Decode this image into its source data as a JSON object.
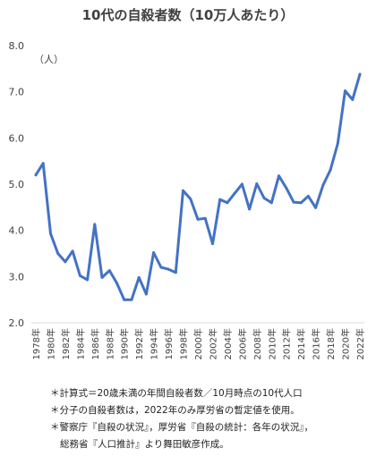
{
  "chart_data": {
    "type": "line",
    "title": "10代の自殺者数（10万人あたり）",
    "unit_label": "（人）",
    "ylim": [
      2.0,
      8.0
    ],
    "y_ticks": [
      "2.0",
      "3.0",
      "4.0",
      "5.0",
      "6.0",
      "7.0",
      "8.0"
    ],
    "x_labels": [
      "1978年",
      "1980年",
      "1982年",
      "1984年",
      "1986年",
      "1988年",
      "1990年",
      "1992年",
      "1994年",
      "1996年",
      "1998年",
      "2000年",
      "2002年",
      "2004年",
      "2006年",
      "2008年",
      "2010年",
      "2012年",
      "2014年",
      "2016年",
      "2018年",
      "2020年",
      "2022年"
    ],
    "grid": false,
    "legend": "none",
    "line_color": "#4472C4",
    "x": [
      1978,
      1979,
      1980,
      1981,
      1982,
      1983,
      1984,
      1985,
      1986,
      1987,
      1988,
      1989,
      1990,
      1991,
      1992,
      1993,
      1994,
      1995,
      1996,
      1997,
      1998,
      1999,
      2000,
      2001,
      2002,
      2003,
      2004,
      2005,
      2006,
      2007,
      2008,
      2009,
      2010,
      2011,
      2012,
      2013,
      2014,
      2015,
      2016,
      2017,
      2018,
      2019,
      2020,
      2021,
      2022
    ],
    "values": [
      5.2,
      5.45,
      3.93,
      3.5,
      3.32,
      3.55,
      3.02,
      2.93,
      4.13,
      2.98,
      3.13,
      2.86,
      2.5,
      2.5,
      2.98,
      2.62,
      3.52,
      3.2,
      3.16,
      3.09,
      4.86,
      4.68,
      4.24,
      4.26,
      3.71,
      4.67,
      4.6,
      4.8,
      5.0,
      4.46,
      5.01,
      4.7,
      4.6,
      5.18,
      4.92,
      4.61,
      4.6,
      4.74,
      4.49,
      4.98,
      5.31,
      5.88,
      7.02,
      6.83,
      7.38
    ]
  },
  "notes": [
    "＊計算式＝20歳未満の年間自殺者数／10月時点の10代人口",
    "＊分子の自殺者数は，2022年のみ厚労省の暫定値を使用。",
    "＊警察庁『自殺の状況』，厚労省『自殺の統計：各年の状況』，",
    "総務省『人口推計』より舞田敏彦作成。"
  ]
}
